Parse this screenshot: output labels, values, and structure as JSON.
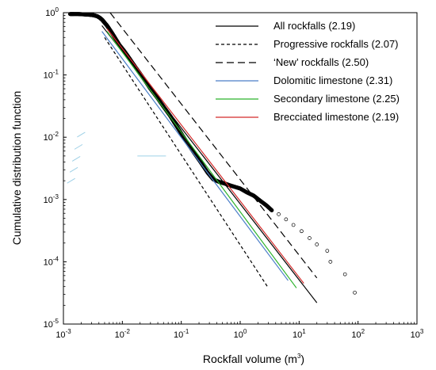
{
  "chart_data": {
    "type": "line",
    "xlabel": "Rockfall volume (m",
    "xlabel_sup": "3",
    "xlabel_end": ")",
    "ylabel": "Cumulative distribution function",
    "x_scale": "log",
    "y_scale": "log",
    "xlim": [
      0.001,
      1000
    ],
    "ylim": [
      1e-05,
      1
    ],
    "grid": false,
    "legend_position": "top-right",
    "x_ticks": [
      {
        "base": "10",
        "exp": "-3",
        "value": 0.001
      },
      {
        "base": "10",
        "exp": "-2",
        "value": 0.01
      },
      {
        "base": "10",
        "exp": "-1",
        "value": 0.1
      },
      {
        "base": "10",
        "exp": "0",
        "value": 1
      },
      {
        "base": "10",
        "exp": "1",
        "value": 10
      },
      {
        "base": "10",
        "exp": "2",
        "value": 100
      },
      {
        "base": "10",
        "exp": "3",
        "value": 1000
      }
    ],
    "y_ticks": [
      {
        "base": "10",
        "exp": "0",
        "value": 1
      },
      {
        "base": "10",
        "exp": "-1",
        "value": 0.1
      },
      {
        "base": "10",
        "exp": "-2",
        "value": 0.01
      },
      {
        "base": "10",
        "exp": "-3",
        "value": 0.001
      },
      {
        "base": "10",
        "exp": "-4",
        "value": 0.0001
      },
      {
        "base": "10",
        "exp": "-5",
        "value": 1e-05
      }
    ],
    "empirical_points": {
      "color": "#000000",
      "marker": "open-circle",
      "dense_x": [
        0.0013,
        0.0015,
        0.0018,
        0.0022,
        0.0026,
        0.003,
        0.0034,
        0.0038,
        0.0042,
        0.0046,
        0.005,
        0.0055,
        0.006,
        0.0068,
        0.0077,
        0.009,
        0.0105,
        0.012,
        0.014,
        0.017,
        0.02,
        0.025,
        0.03,
        0.04,
        0.05,
        0.065,
        0.08,
        0.1,
        0.13,
        0.17,
        0.22,
        0.28,
        0.35,
        0.45,
        0.55,
        0.65,
        0.8,
        1.0,
        1.3,
        1.7,
        2.2,
        2.8,
        3.5
      ],
      "dense_y": [
        0.95,
        0.95,
        0.95,
        0.94,
        0.93,
        0.92,
        0.9,
        0.87,
        0.82,
        0.76,
        0.69,
        0.62,
        0.55,
        0.46,
        0.38,
        0.3,
        0.25,
        0.21,
        0.17,
        0.13,
        0.105,
        0.078,
        0.06,
        0.042,
        0.031,
        0.022,
        0.016,
        0.0115,
        0.0078,
        0.0054,
        0.0038,
        0.0027,
        0.0021,
        0.0019,
        0.0018,
        0.0017,
        0.0016,
        0.0015,
        0.0013,
        0.00115,
        0.00095,
        0.0008,
        0.00066
      ],
      "sparse": [
        {
          "x": 4.5,
          "y": 0.00058
        },
        {
          "x": 6.0,
          "y": 0.00048
        },
        {
          "x": 8.0,
          "y": 0.00039
        },
        {
          "x": 11.0,
          "y": 0.00031
        },
        {
          "x": 15.0,
          "y": 0.00024
        },
        {
          "x": 20.0,
          "y": 0.00019
        },
        {
          "x": 30.0,
          "y": 0.00015
        },
        {
          "x": 34.0,
          "y": 0.0001
        },
        {
          "x": 60.0,
          "y": 6.3e-05
        },
        {
          "x": 88.0,
          "y": 3.2e-05
        }
      ]
    },
    "faint_stray_marks": {
      "color": "#9ed0e6",
      "x": [
        0.00135,
        0.0015,
        0.00165,
        0.0018,
        0.002
      ],
      "y": [
        0.002,
        0.003,
        0.0045,
        0.007,
        0.011
      ],
      "extra_line": {
        "x": [
          0.018,
          0.055
        ],
        "y": [
          0.005,
          0.005
        ]
      }
    },
    "series": [
      {
        "name": "All rockfalls (2.19)",
        "color": "#000000",
        "dash": "solid",
        "x": [
          0.0045,
          20
        ],
        "y": [
          0.62,
          2.2e-05
        ]
      },
      {
        "name": "Progressive rockfalls (2.07)",
        "color": "#000000",
        "dash": "short",
        "x": [
          0.005,
          3
        ],
        "y": [
          0.4,
          3.8e-05
        ]
      },
      {
        "name": "‘New’ rockfalls (2.50)",
        "color": "#000000",
        "dash": "long",
        "x": [
          0.0062,
          20
        ],
        "y": [
          1.0,
          5.5e-05
        ]
      },
      {
        "name": "Dolomitic limestone (2.31)",
        "color": "#4a7ec8",
        "dash": "solid",
        "x": [
          0.0045,
          6.5
        ],
        "y": [
          0.5,
          5e-05
        ]
      },
      {
        "name": "Secondary limestone (2.25)",
        "color": "#2ab22a",
        "dash": "solid",
        "x": [
          0.0055,
          9
        ],
        "y": [
          0.5,
          3.8e-05
        ]
      },
      {
        "name": "Brecciated limestone (2.19)",
        "color": "#d42a2a",
        "dash": "solid",
        "x": [
          0.0055,
          12
        ],
        "y": [
          0.55,
          4.5e-05
        ]
      }
    ]
  }
}
